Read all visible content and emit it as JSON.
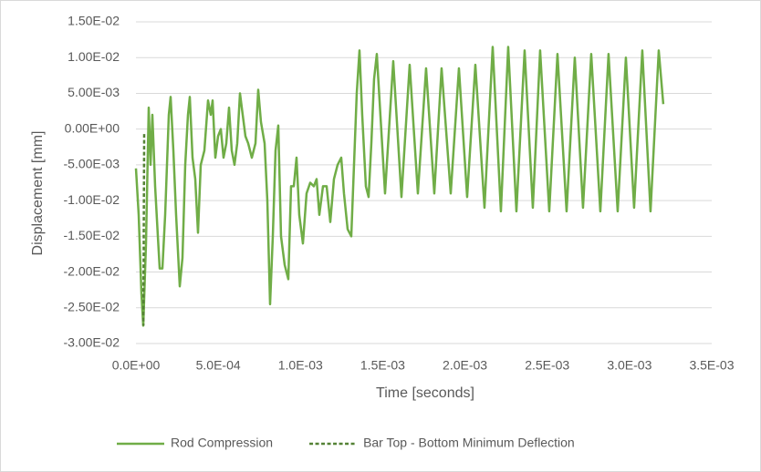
{
  "chart_data": {
    "type": "line",
    "x_label": "Time [seconds]",
    "y_label": "Displacement [mm]",
    "xlim": [
      0,
      0.0035
    ],
    "ylim": [
      -0.03,
      0.015
    ],
    "xticks": [
      {
        "value": 0,
        "label": "0.0E+00"
      },
      {
        "value": 0.0005,
        "label": "5.0E-04"
      },
      {
        "value": 0.001,
        "label": "1.0E-03"
      },
      {
        "value": 0.0015,
        "label": "1.5E-03"
      },
      {
        "value": 0.002,
        "label": "2.0E-03"
      },
      {
        "value": 0.0025,
        "label": "2.5E-03"
      },
      {
        "value": 0.003,
        "label": "3.0E-03"
      },
      {
        "value": 0.0035,
        "label": "3.5E-03"
      }
    ],
    "yticks": [
      {
        "value": 0.015,
        "label": "1.50E-02"
      },
      {
        "value": 0.01,
        "label": "1.00E-02"
      },
      {
        "value": 0.005,
        "label": "5.00E-03"
      },
      {
        "value": 0,
        "label": "0.00E+00"
      },
      {
        "value": -0.005,
        "label": "-5.00E-03"
      },
      {
        "value": -0.01,
        "label": "-1.00E-02"
      },
      {
        "value": -0.015,
        "label": "-1.50E-02"
      },
      {
        "value": -0.02,
        "label": "-2.00E-02"
      },
      {
        "value": -0.025,
        "label": "-2.50E-02"
      },
      {
        "value": -0.03,
        "label": "-3.00E-02"
      }
    ],
    "grid": true,
    "legend": "bottom",
    "series": [
      {
        "name": "Rod Compression",
        "color": "#70ad47",
        "dash": false,
        "x": [
          0,
          1.66e-05,
          3.33e-05,
          4.44e-05,
          6.1e-05,
          7.76e-05,
          8.87e-05,
          9.98e-05,
          0.0001165,
          0.0001331,
          0.0001442,
          0.0001608,
          0.0001775,
          0.0001997,
          0.0002107,
          0.0002274,
          0.000244,
          0.0002662,
          0.0002828,
          0.0002995,
          0.0003161,
          0.0003272,
          0.0003439,
          0.0003605,
          0.0003771,
          0.0003938,
          0.000416,
          0.0004381,
          0.0004548,
          0.0004659,
          0.0004825,
          0.0004991,
          0.0005158,
          0.0005324,
          0.0005491,
          0.0005657,
          0.0005823,
          0.000599,
          0.0006156,
          0.0006323,
          0.0006489,
          0.0006655,
          0.0006822,
          0.0007043,
          0.0007265,
          0.0007432,
          0.0007598,
          0.000782,
          0.0007986,
          0.0008153,
          0.0008319,
          0.0008485,
          0.0008652,
          0.0008818,
          0.000904,
          0.0009262,
          0.0009428,
          0.0009595,
          0.0009761,
          0.0009927,
          0.0010149,
          0.0010371,
          0.0010593,
          0.0010815,
          0.0010981,
          0.0011147,
          0.0011369,
          0.0011591,
          0.0011813,
          0.0012035,
          0.0012257,
          0.0012479,
          0.0012645,
          0.0012867,
          0.0013089,
          0.0013255,
          0.0013421,
          0.0013588,
          0.0013754,
          0.0013976,
          0.0014142,
          0.0014309,
          0.0014475,
          0.0014641,
          0.0015141,
          0.001564,
          0.0016139,
          0.0016638,
          0.0017137,
          0.0017636,
          0.0018135,
          0.0018579,
          0.0019134,
          0.0019633,
          0.0020132,
          0.0020631,
          0.0021186,
          0.0021685,
          0.0022184,
          0.0022628,
          0.0023127,
          0.0023626,
          0.0024125,
          0.0024569,
          0.0025123,
          0.0025623,
          0.0026177,
          0.0026676,
          0.0027175,
          0.0027675,
          0.0028229,
          0.0028728,
          0.0029283,
          0.0029782,
          0.0030281,
          0.003078,
          0.0031279,
          0.0031779,
          0.0032056
        ],
        "values": [
          -0.0055,
          -0.012,
          -0.023,
          -0.0275,
          -0.016,
          0.003,
          -0.005,
          0.002,
          -0.008,
          -0.015,
          -0.0195,
          -0.0195,
          -0.012,
          0.002,
          0.0045,
          -0.003,
          -0.012,
          -0.022,
          -0.018,
          -0.005,
          0.002,
          0.0045,
          -0.004,
          -0.007,
          -0.0145,
          -0.005,
          -0.003,
          0.004,
          0.002,
          0.004,
          -0.004,
          -0.001,
          0,
          -0.004,
          -0.002,
          0.003,
          -0.003,
          -0.005,
          -0.002,
          0.005,
          0.002,
          -0.001,
          -0.002,
          -0.004,
          -0.002,
          0.0055,
          0.001,
          -0.002,
          -0.01,
          -0.0245,
          -0.015,
          -0.003,
          0.0005,
          -0.015,
          -0.019,
          -0.021,
          -0.008,
          -0.008,
          -0.004,
          -0.012,
          -0.016,
          -0.009,
          -0.0075,
          -0.008,
          -0.007,
          -0.012,
          -0.008,
          -0.008,
          -0.013,
          -0.007,
          -0.005,
          -0.004,
          -0.009,
          -0.014,
          -0.015,
          -0.005,
          0.005,
          0.011,
          0.002,
          -0.008,
          -0.0095,
          -0.002,
          0.007,
          0.0105,
          -0.009,
          0.0095,
          -0.0095,
          0.009,
          -0.009,
          0.0085,
          -0.009,
          0.0085,
          -0.009,
          0.0085,
          -0.0095,
          0.009,
          -0.011,
          0.0115,
          -0.0115,
          0.0115,
          -0.0115,
          0.011,
          -0.011,
          0.011,
          -0.0115,
          0.0105,
          -0.0115,
          0.01,
          -0.011,
          0.0105,
          -0.0115,
          0.0105,
          -0.0115,
          0.01,
          -0.011,
          0.011,
          -0.0115,
          0.011,
          0.0035
        ]
      },
      {
        "name": "Bar Top - Bottom Minimum Deflection",
        "color": "#548235",
        "dash": true,
        "x": [
          5e-05,
          4.5e-05
        ],
        "values": [
          -0.0007,
          -0.0275
        ]
      }
    ]
  }
}
